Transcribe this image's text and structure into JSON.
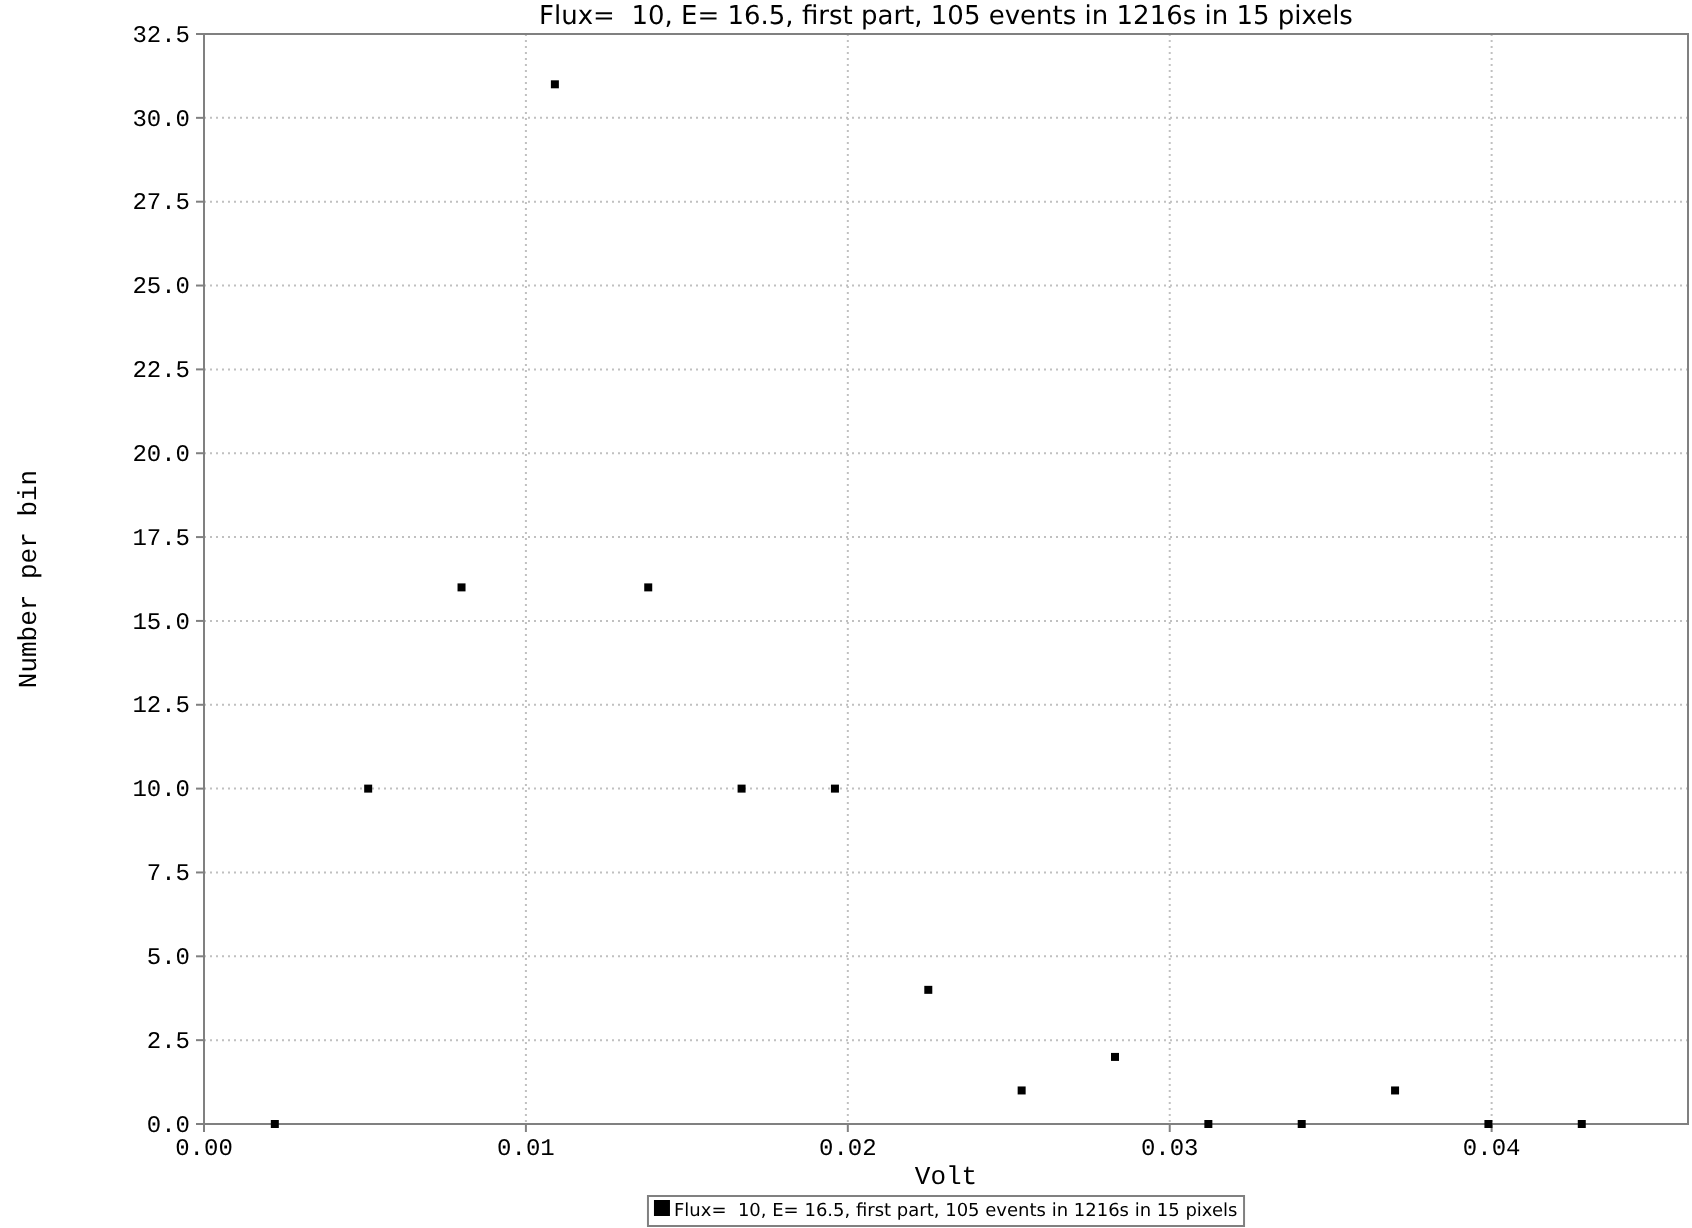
{
  "chart_data": {
    "type": "scatter",
    "title": "Flux=  10, E= 16.5, first part, 105 events in 1216s in 15 pixels",
    "xlabel": "Volt",
    "ylabel": "Number per bin",
    "x": [
      0.0022,
      0.0051,
      0.008,
      0.0109,
      0.0138,
      0.0167,
      0.0196,
      0.0225,
      0.0254,
      0.0283,
      0.0312,
      0.0341,
      0.037,
      0.0399,
      0.0428
    ],
    "series": [
      {
        "name": "Flux=  10, E= 16.5, first part, 105 events in 1216s in 15 pixels",
        "color": "#000000",
        "values": [
          0,
          10,
          16,
          31,
          16,
          10,
          10,
          4,
          1,
          2,
          0,
          0,
          1,
          0,
          0
        ]
      }
    ],
    "xlim": [
      0,
      0.0461
    ],
    "xticks": [
      {
        "value": 0,
        "label": "0.00"
      },
      {
        "value": 0.01,
        "label": "0.01"
      },
      {
        "value": 0.02,
        "label": "0.02"
      },
      {
        "value": 0.03,
        "label": "0.03"
      },
      {
        "value": 0.04,
        "label": "0.04"
      }
    ],
    "ylim": [
      0,
      32.5
    ],
    "yticks": [
      {
        "value": 0,
        "label": "0.0"
      },
      {
        "value": 2.5,
        "label": "2.5"
      },
      {
        "value": 5,
        "label": "5.0"
      },
      {
        "value": 7.5,
        "label": "7.5"
      },
      {
        "value": 10,
        "label": "10.0"
      },
      {
        "value": 12.5,
        "label": "12.5"
      },
      {
        "value": 15,
        "label": "15.0"
      },
      {
        "value": 17.5,
        "label": "17.5"
      },
      {
        "value": 20,
        "label": "20.0"
      },
      {
        "value": 22.5,
        "label": "22.5"
      },
      {
        "value": 25,
        "label": "25.0"
      },
      {
        "value": 27.5,
        "label": "27.5"
      },
      {
        "value": 30,
        "label": "30.0"
      },
      {
        "value": 32.5,
        "label": "32.5"
      }
    ],
    "grid": true,
    "legend": "bottom",
    "marker": "square"
  }
}
